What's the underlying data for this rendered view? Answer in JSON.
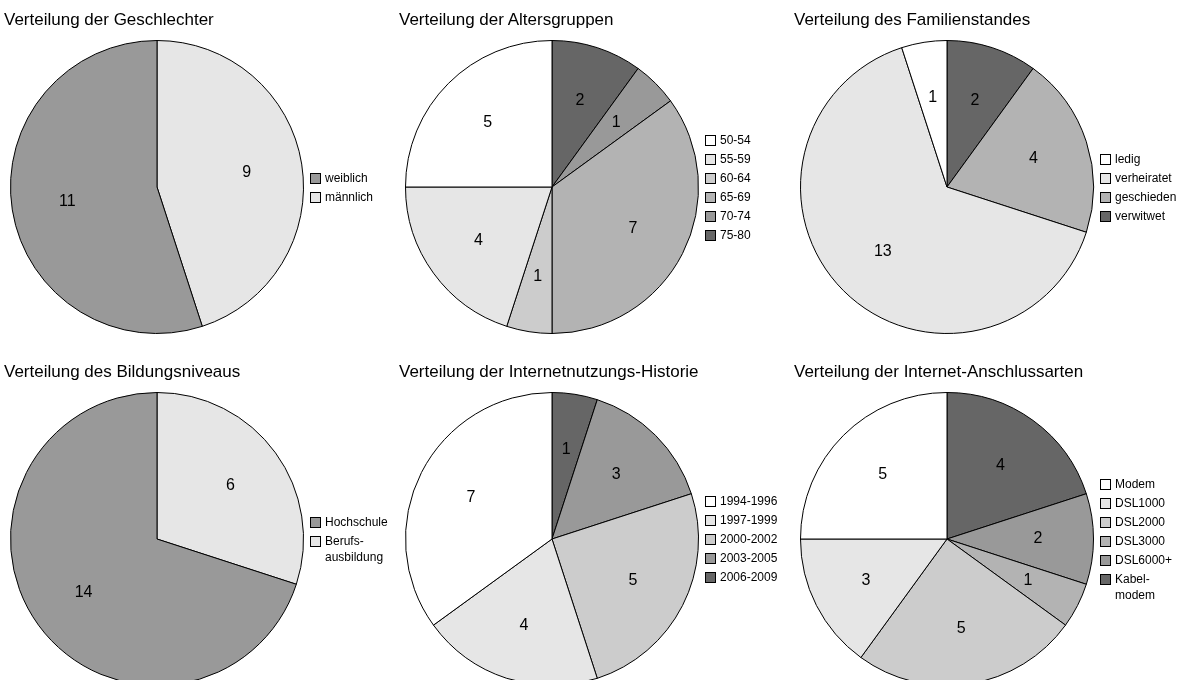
{
  "chart_data": [
    {
      "type": "pie",
      "title": "Verteilung der Geschlechter",
      "categories": [
        "weiblich",
        "männlich"
      ],
      "values": [
        11,
        9
      ],
      "colors": [
        "#999999",
        "#e6e6e6"
      ],
      "data_labels": true,
      "legend": "right"
    },
    {
      "type": "pie",
      "title": "Verteilung der Altersgruppen",
      "categories": [
        "50-54",
        "55-59",
        "60-64",
        "65-69",
        "70-74",
        "75-80"
      ],
      "values": [
        5,
        4,
        1,
        7,
        1,
        2
      ],
      "colors": [
        "#ffffff",
        "#e6e6e6",
        "#cccccc",
        "#b3b3b3",
        "#999999",
        "#666666"
      ],
      "data_labels": true,
      "legend": "right"
    },
    {
      "type": "pie",
      "title": "Verteilung des Familienstandes",
      "categories": [
        "ledig",
        "verheiratet",
        "geschieden",
        "verwitwet"
      ],
      "values": [
        1,
        13,
        4,
        2
      ],
      "colors": [
        "#ffffff",
        "#e6e6e6",
        "#b3b3b3",
        "#666666"
      ],
      "data_labels": true,
      "legend": "right"
    },
    {
      "type": "pie",
      "title": "Verteilung des Bildungsniveaus",
      "categories": [
        "Hochschule",
        "Berufs-ausbildung"
      ],
      "values": [
        14,
        6
      ],
      "colors": [
        "#999999",
        "#e6e6e6"
      ],
      "data_labels": true,
      "legend": "right"
    },
    {
      "type": "pie",
      "title": "Verteilung der Internetnutzungs-Historie",
      "categories": [
        "1994-1996",
        "1997-1999",
        "2000-2002",
        "2003-2005",
        "2006-2009"
      ],
      "values": [
        7,
        4,
        5,
        3,
        1
      ],
      "colors": [
        "#ffffff",
        "#e6e6e6",
        "#cccccc",
        "#999999",
        "#666666"
      ],
      "data_labels": true,
      "legend": "right"
    },
    {
      "type": "pie",
      "title": "Verteilung der Internet-Anschlussarten",
      "categories": [
        "Modem",
        "DSL1000",
        "DSL2000",
        "DSL3000",
        "DSL6000+",
        "Kabel-modem"
      ],
      "values": [
        5,
        3,
        5,
        1,
        2,
        4
      ],
      "colors": [
        "#ffffff",
        "#e6e6e6",
        "#cccccc",
        "#b3b3b3",
        "#999999",
        "#666666"
      ],
      "data_labels": true,
      "legend": "right"
    }
  ]
}
